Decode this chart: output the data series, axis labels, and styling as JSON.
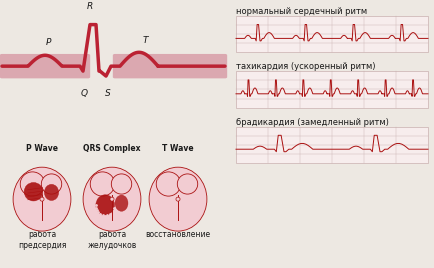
{
  "bg_color": "#ede8e2",
  "title_normal": "нормальный сердечный ритм",
  "title_tachy": "тахикардия (ускоренный ритм)",
  "title_brady": "брадикардия (замедленный ритм)",
  "label_p": "P",
  "label_r": "R",
  "label_q": "Q",
  "label_s": "S",
  "label_t": "T",
  "label_pwave": "P Wave",
  "label_qrs": "QRS Complex",
  "label_twave": "T Wave",
  "label_atria": "работа\nпредсердия",
  "label_ventricle": "работа\nжелудочков",
  "label_recovery": "восстановление",
  "ecg_color": "#aa1111",
  "heart_light": "#f2ccd2",
  "heart_dark": "#aa1111",
  "grid_color": "#c9b0b0",
  "strip_bg": "#f7eded",
  "text_color": "#1a1a1a",
  "ribbon_color": "#dba8b0",
  "ribbon_dark": "#bb2233",
  "figw": 4.34,
  "figh": 2.68,
  "dpi": 100
}
